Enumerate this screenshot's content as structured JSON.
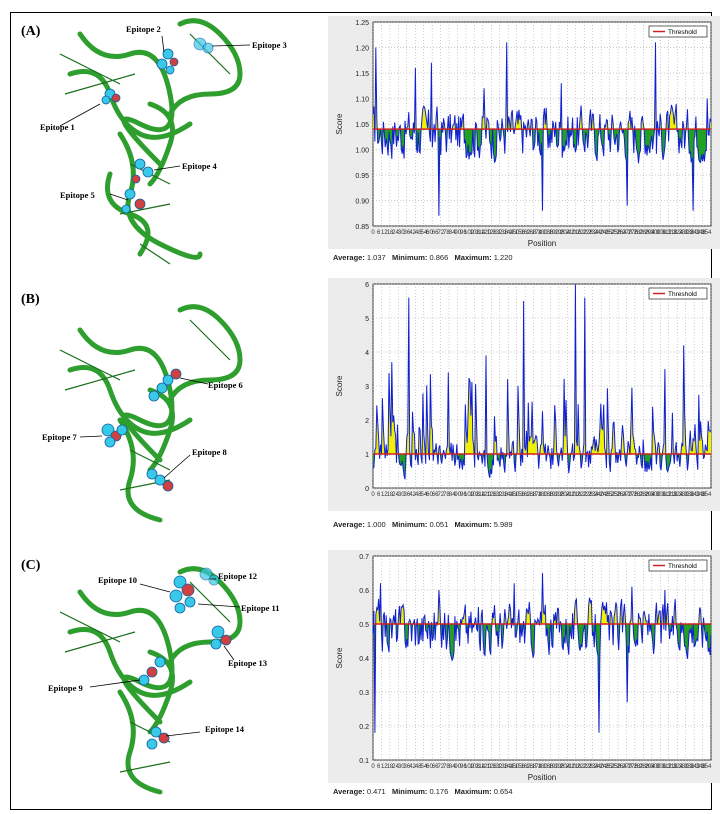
{
  "figure": {
    "panels": [
      {
        "label": "(A)",
        "epitopes": [
          "Epitope 1",
          "Epitope 2",
          "Epitope 3",
          "Epitope 4",
          "Epitope 5"
        ],
        "stats": {
          "average_label": "Average:",
          "average": "1.037",
          "minimum_label": "Minimum:",
          "minimum": "0.866",
          "maximum_label": "Maximum:",
          "maximum": "1.220"
        }
      },
      {
        "label": "(B)",
        "epitopes": [
          "Epitope 6",
          "Epitope 7",
          "Epitope 8"
        ],
        "stats": {
          "average_label": "Average:",
          "average": "1.000",
          "minimum_label": "Minimum:",
          "minimum": "0.051",
          "maximum_label": "Maximum:",
          "maximum": "5.989"
        }
      },
      {
        "label": "(C)",
        "epitopes": [
          "Epitope 9",
          "Epitope 10",
          "Epitope 11",
          "Epitope 12",
          "Epitope 13",
          "Epitope 14"
        ],
        "stats": {
          "average_label": "Average:",
          "average": "0.471",
          "minimum_label": "Minimum:",
          "minimum": "0.176",
          "maximum_label": "Maximum:",
          "maximum": "0.654"
        }
      }
    ]
  },
  "colors": {
    "protein": "#2e9e2e",
    "epitope_sphere": "#38c8e8",
    "above": "#f0f000",
    "below": "#22a022",
    "line": "#1020d0",
    "threshold": "#d02020"
  },
  "chart_data": [
    {
      "type": "area",
      "xlabel": "Position",
      "ylabel": "Score",
      "ylim": [
        0.85,
        1.25
      ],
      "yticks": [
        "0.85",
        "0.90",
        "0.95",
        "1.00",
        "1.05",
        "1.10",
        "1.15",
        "1.20",
        "1.25"
      ],
      "threshold": 1.04,
      "threshold_label": "Threshold",
      "n_points": 360,
      "min": 0.866,
      "max": 1.22,
      "average": 1.037,
      "grid": true,
      "legend": "top-right",
      "peaks": [
        [
          3,
          1.2
        ],
        [
          45,
          1.16
        ],
        [
          62,
          1.17
        ],
        [
          118,
          1.12
        ],
        [
          142,
          1.21
        ],
        [
          200,
          1.13
        ],
        [
          300,
          1.21
        ],
        [
          355,
          1.1
        ]
      ],
      "troughs": [
        [
          70,
          0.87
        ],
        [
          180,
          0.88
        ],
        [
          270,
          0.89
        ],
        [
          340,
          0.88
        ]
      ]
    },
    {
      "type": "area",
      "xlabel": "",
      "ylabel": "Score",
      "ylim": [
        0,
        6
      ],
      "yticks": [
        "0",
        "1",
        "2",
        "3",
        "4",
        "5",
        "6"
      ],
      "threshold": 1.0,
      "threshold_label": "Threshold",
      "n_points": 360,
      "min": 0.051,
      "max": 5.989,
      "average": 1.0,
      "grid": true,
      "legend": "top-right",
      "peaks": [
        [
          20,
          3.7
        ],
        [
          38,
          5.6
        ],
        [
          80,
          3.4
        ],
        [
          120,
          3.9
        ],
        [
          160,
          5.5
        ],
        [
          215,
          5.99
        ],
        [
          225,
          5.6
        ],
        [
          310,
          3.5
        ],
        [
          330,
          4.2
        ]
      ],
      "troughs": []
    },
    {
      "type": "area",
      "xlabel": "Position",
      "ylabel": "Score",
      "ylim": [
        0.1,
        0.7
      ],
      "yticks": [
        "0.1",
        "0.2",
        "0.3",
        "0.4",
        "0.5",
        "0.6",
        "0.7"
      ],
      "threshold": 0.5,
      "threshold_label": "Threshold",
      "n_points": 360,
      "min": 0.176,
      "max": 0.654,
      "average": 0.471,
      "grid": true,
      "legend": "top-right",
      "peaks": [
        [
          8,
          0.62
        ],
        [
          70,
          0.6
        ],
        [
          150,
          0.62
        ],
        [
          180,
          0.65
        ],
        [
          275,
          0.61
        ],
        [
          310,
          0.6
        ]
      ],
      "troughs": [
        [
          2,
          0.18
        ],
        [
          240,
          0.18
        ],
        [
          270,
          0.27
        ]
      ]
    }
  ]
}
